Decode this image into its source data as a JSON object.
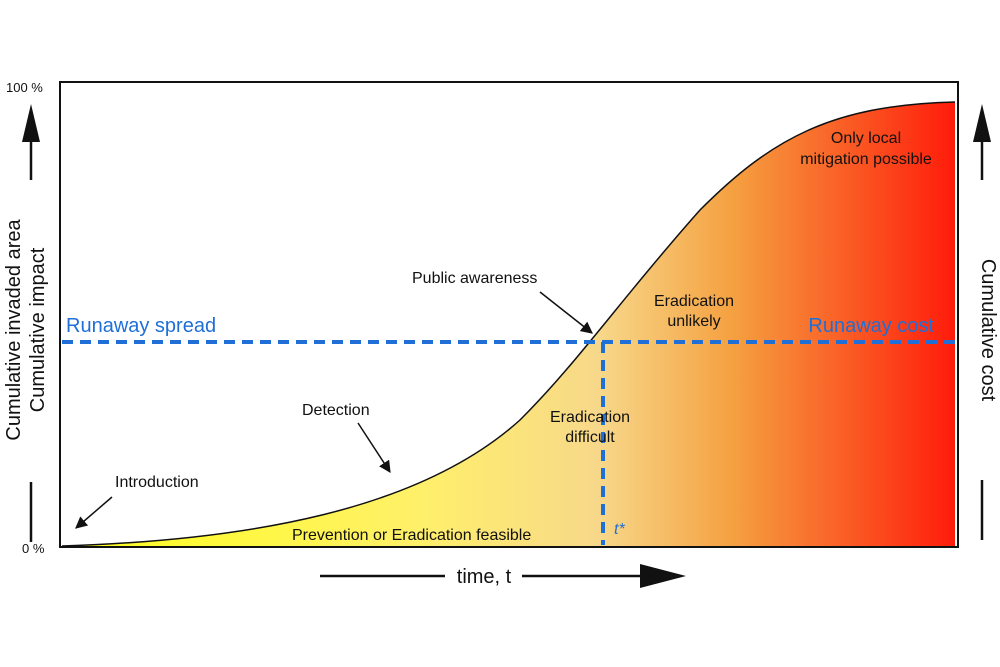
{
  "figure": {
    "y_axis_top_label": "100 %",
    "y_axis_bottom_label": "0 %",
    "left_axis_label_line1": "Cumulative invaded area",
    "left_axis_label_line2": "Cumulative impact",
    "right_axis_label": "Cumulative cost",
    "x_axis_label": "time, t"
  },
  "annotations": {
    "introduction": "Introduction",
    "detection": "Detection",
    "public_awareness": "Public awareness",
    "runaway_spread": "Runaway spread",
    "runaway_cost": "Runaway cost",
    "eradication_unlikely_1": "Eradication",
    "eradication_unlikely_2": "unlikely",
    "eradication_difficult_1": "Eradication",
    "eradication_difficult_2": "difficult",
    "only_local_1": "Only local",
    "only_local_2": "mitigation possible",
    "prevention": "Prevention or Eradication feasible",
    "t_star": "t*"
  },
  "colors": {
    "gradient_start": "#ffff1a",
    "gradient_mid": "#f7d88a",
    "gradient_late": "#f5a040",
    "gradient_end": "#ff1a0a",
    "dashed_line": "#1f6fd6"
  }
}
